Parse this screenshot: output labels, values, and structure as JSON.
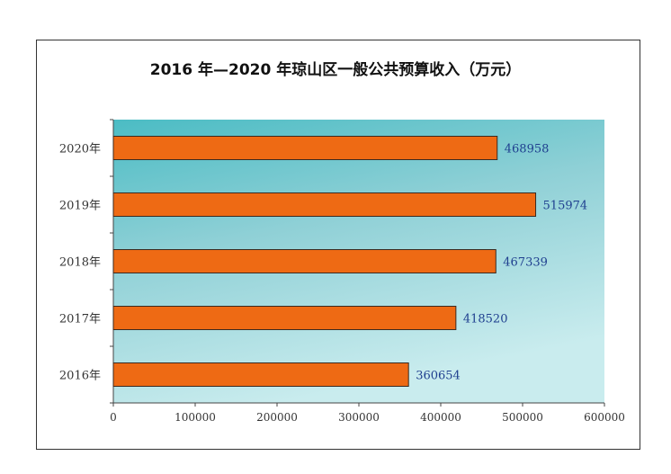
{
  "chart_data": {
    "type": "bar",
    "orientation": "horizontal",
    "title": "2016 年—2020 年琼山区一般公共预算收入（万元）",
    "categories": [
      "2020年",
      "2019年",
      "2018年",
      "2017年",
      "2016年"
    ],
    "values": [
      468958,
      515974,
      467339,
      418520,
      360654
    ],
    "value_labels": [
      "468958",
      "515974",
      "467339",
      "418520",
      "360654"
    ],
    "xlim": [
      0,
      600000
    ],
    "xticks": [
      0,
      100000,
      200000,
      300000,
      400000,
      500000,
      600000
    ],
    "xtick_labels": [
      "0",
      "100000",
      "200000",
      "300000",
      "400000",
      "500000",
      "600000"
    ],
    "xlabel": "",
    "ylabel": "",
    "grid": false,
    "legend": "none",
    "colors": {
      "bar_fill": "#ee6a14",
      "bar_stroke": "#3a2a20",
      "plot_bg_top": "#4bbcc4",
      "plot_bg_mid": "#8fd0d6",
      "plot_bg_bottom": "#c9ecee",
      "value_text": "#1f3f8f"
    }
  }
}
